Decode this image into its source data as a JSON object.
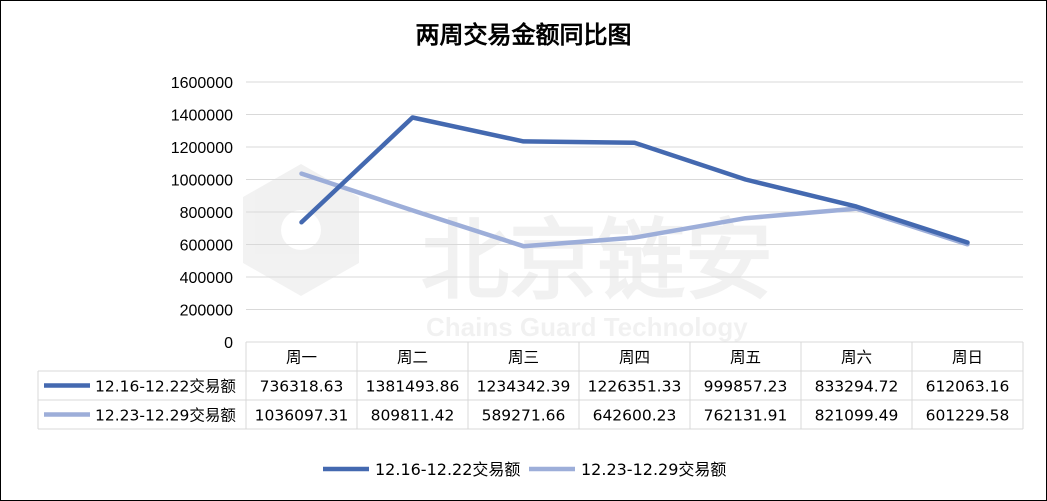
{
  "chart_data": {
    "type": "line",
    "title": "两周交易金额同比图",
    "categories": [
      "周一",
      "周二",
      "周三",
      "周四",
      "周五",
      "周六",
      "周日"
    ],
    "y_ticks": [
      "0",
      "200000",
      "400000",
      "600000",
      "800000",
      "1000000",
      "1200000",
      "1400000",
      "1600000"
    ],
    "ylim": [
      0,
      1600000
    ],
    "grid": true,
    "legend_position": "bottom",
    "series": [
      {
        "name": "12.16-12.22交易额",
        "color": "#4469B0",
        "values": [
          736318.63,
          1381493.86,
          1234342.39,
          1226351.33,
          999857.23,
          833294.72,
          612063.16
        ],
        "labels": [
          "736318.63",
          "1381493.86",
          "1234342.39",
          "1226351.33",
          "999857.23",
          "833294.72",
          "612063.16"
        ]
      },
      {
        "name": "12.23-12.29交易额",
        "color": "#9DAED9",
        "values": [
          1036097.31,
          809811.42,
          589271.66,
          642600.23,
          762131.91,
          821099.49,
          601229.58
        ],
        "labels": [
          "1036097.31",
          "809811.42",
          "589271.66",
          "642600.23",
          "762131.91",
          "821099.49",
          "601229.58"
        ]
      }
    ]
  },
  "watermark": {
    "text_cn": "北京链安",
    "text_en": "Chains Guard Technology"
  }
}
